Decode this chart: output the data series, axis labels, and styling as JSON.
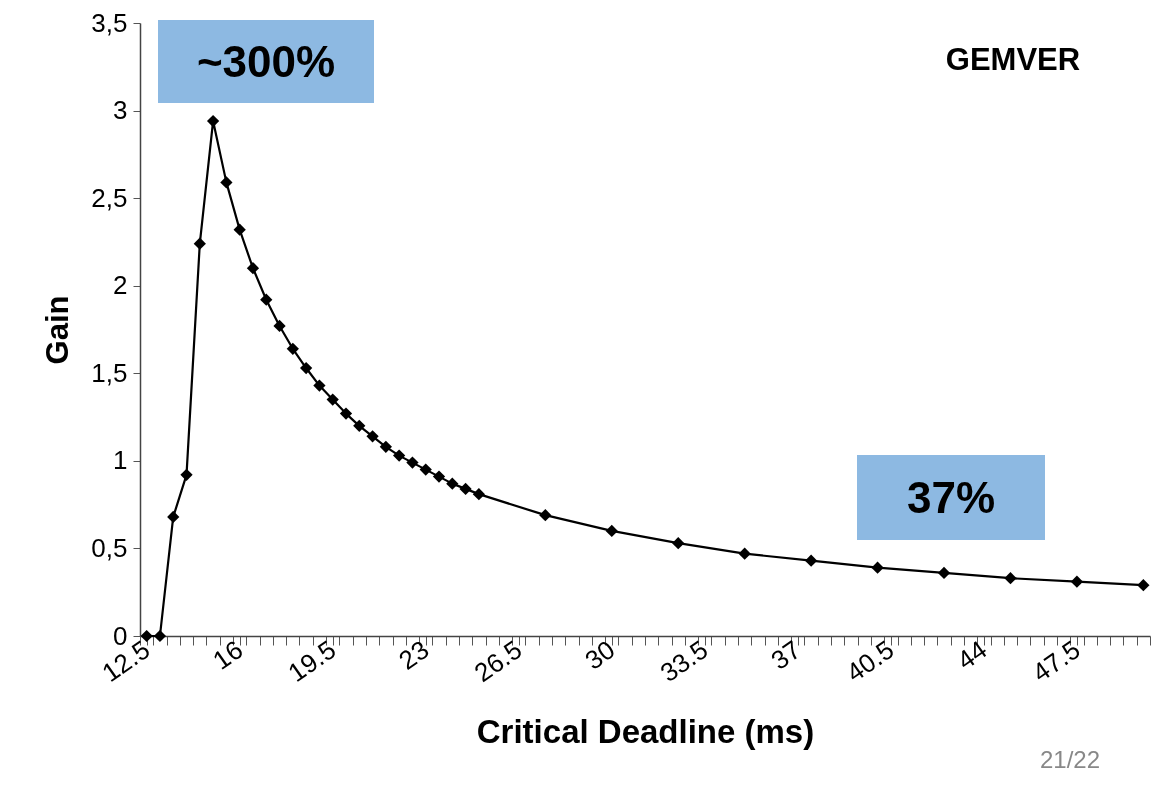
{
  "chart_data": {
    "type": "line",
    "title": "GEMVER",
    "xlabel": "Critical Deadline (ms)",
    "ylabel": "Gain",
    "x": [
      12.5,
      13,
      13.5,
      14,
      14.5,
      15,
      15.5,
      16,
      16.5,
      17,
      17.5,
      18,
      18.5,
      19,
      19.5,
      20,
      20.5,
      21,
      21.5,
      22,
      22.5,
      23,
      23.5,
      24,
      24.5,
      25,
      27.5,
      30,
      32.5,
      35,
      37.5,
      40,
      42.5,
      45,
      47.5,
      50
    ],
    "series": [
      {
        "color": "#000000",
        "values": [
          0,
          0,
          0.68,
          0.92,
          2.24,
          2.94,
          2.59,
          2.32,
          2.1,
          1.92,
          1.77,
          1.64,
          1.53,
          1.43,
          1.35,
          1.27,
          1.2,
          1.14,
          1.08,
          1.03,
          0.99,
          0.95,
          0.91,
          0.87,
          0.84,
          0.81,
          0.69,
          0.6,
          0.53,
          0.47,
          0.43,
          0.39,
          0.36,
          0.33,
          0.31,
          0.29
        ]
      }
    ],
    "xlim": [
      12.25,
      50.25
    ],
    "xticks": [
      {
        "value": 12.25,
        "label": null
      },
      12.5,
      {
        "value": 12.75,
        "label": null
      },
      {
        "value": 13.25,
        "label": null
      },
      {
        "value": 13.75,
        "label": null
      },
      {
        "value": 14.25,
        "label": null
      },
      {
        "value": 14.75,
        "label": null
      },
      {
        "value": 15.25,
        "label": null
      },
      {
        "value": 15.75,
        "label": null
      },
      16,
      {
        "value": 16.25,
        "label": null
      },
      {
        "value": 16.75,
        "label": null
      },
      {
        "value": 17.25,
        "label": null
      },
      {
        "value": 17.75,
        "label": null
      },
      {
        "value": 18.25,
        "label": null
      },
      {
        "value": 18.75,
        "label": null
      },
      {
        "value": 19.25,
        "label": null
      },
      19.5,
      {
        "value": 19.75,
        "label": null
      },
      {
        "value": 20.25,
        "label": null
      },
      {
        "value": 20.75,
        "label": null
      },
      {
        "value": 21.25,
        "label": null
      },
      {
        "value": 21.75,
        "label": null
      },
      {
        "value": 22.25,
        "label": null
      },
      {
        "value": 22.75,
        "label": null
      },
      23,
      {
        "value": 23.25,
        "label": null
      },
      {
        "value": 23.75,
        "label": null
      },
      {
        "value": 24.25,
        "label": null
      },
      {
        "value": 24.75,
        "label": null
      },
      {
        "value": 25.25,
        "label": null
      },
      {
        "value": 25.75,
        "label": null
      },
      {
        "value": 26.25,
        "label": null
      },
      26.5,
      {
        "value": 26.75,
        "label": null
      },
      {
        "value": 27.25,
        "label": null
      },
      {
        "value": 27.75,
        "label": null
      },
      {
        "value": 28.25,
        "label": null
      },
      {
        "value": 28.75,
        "label": null
      },
      {
        "value": 29.25,
        "label": null
      },
      {
        "value": 29.75,
        "label": null
      },
      30,
      {
        "value": 30.25,
        "label": null
      },
      {
        "value": 30.75,
        "label": null
      },
      {
        "value": 31.25,
        "label": null
      },
      {
        "value": 31.75,
        "label": null
      },
      {
        "value": 32.25,
        "label": null
      },
      {
        "value": 32.75,
        "label": null
      },
      {
        "value": 33.25,
        "label": null
      },
      33.5,
      {
        "value": 33.75,
        "label": null
      },
      {
        "value": 34.25,
        "label": null
      },
      {
        "value": 34.75,
        "label": null
      },
      {
        "value": 35.25,
        "label": null
      },
      {
        "value": 35.75,
        "label": null
      },
      {
        "value": 36.25,
        "label": null
      },
      {
        "value": 36.75,
        "label": null
      },
      37,
      {
        "value": 37.25,
        "label": null
      },
      {
        "value": 37.75,
        "label": null
      },
      {
        "value": 38.25,
        "label": null
      },
      {
        "value": 38.75,
        "label": null
      },
      {
        "value": 39.25,
        "label": null
      },
      {
        "value": 39.75,
        "label": null
      },
      {
        "value": 40.25,
        "label": null
      },
      40.5,
      {
        "value": 40.75,
        "label": null
      },
      {
        "value": 41.25,
        "label": null
      },
      {
        "value": 41.75,
        "label": null
      },
      {
        "value": 42.25,
        "label": null
      },
      {
        "value": 42.75,
        "label": null
      },
      {
        "value": 43.25,
        "label": null
      },
      {
        "value": 43.75,
        "label": null
      },
      44,
      {
        "value": 44.25,
        "label": null
      },
      {
        "value": 44.75,
        "label": null
      },
      {
        "value": 45.25,
        "label": null
      },
      {
        "value": 45.75,
        "label": null
      },
      {
        "value": 46.25,
        "label": null
      },
      {
        "value": 46.75,
        "label": null
      },
      {
        "value": 47.25,
        "label": null
      },
      47.5,
      {
        "value": 47.75,
        "label": null
      },
      {
        "value": 48.25,
        "label": null
      },
      {
        "value": 48.75,
        "label": null
      },
      {
        "value": 49.25,
        "label": null
      },
      {
        "value": 49.75,
        "label": null
      },
      {
        "value": 50.25,
        "label": null
      }
    ],
    "ylim": [
      0,
      3.5
    ],
    "yticks": [
      0,
      {
        "value": 0.5,
        "label": "0,5"
      },
      1,
      {
        "value": 1.5,
        "label": "1,5"
      },
      2,
      {
        "value": 2.5,
        "label": "2,5"
      },
      3,
      {
        "value": 3.5,
        "label": "3,5"
      }
    ],
    "marker": "diamond",
    "line_style": "solid",
    "grid": false,
    "annotations": [
      "~300%",
      "37%",
      "21/22"
    ]
  }
}
